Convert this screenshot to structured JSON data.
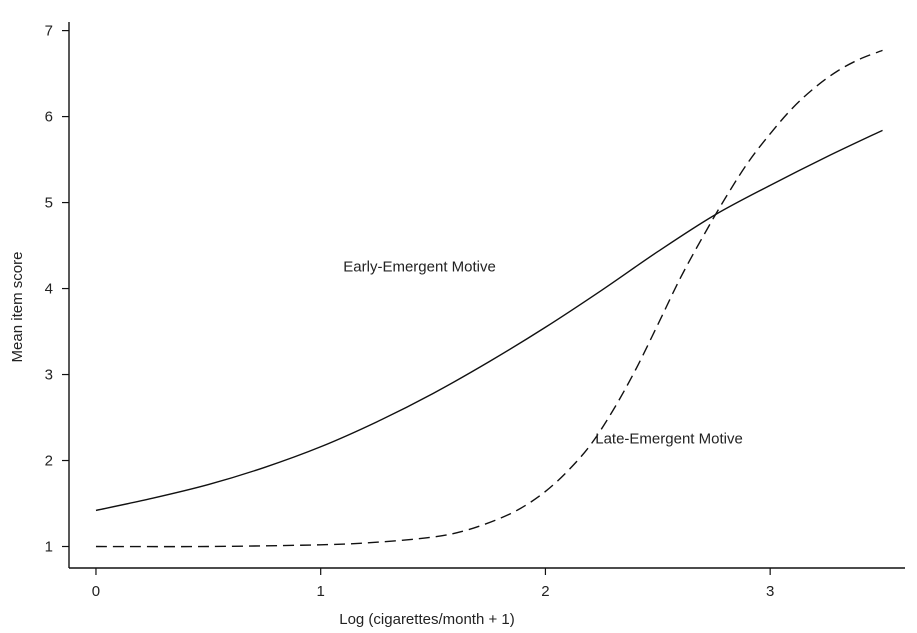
{
  "chart_data": {
    "type": "line",
    "title": "",
    "xlabel": "Log (cigarettes/month + 1)",
    "ylabel": "Mean item score",
    "xlim": [
      -0.12,
      3.6
    ],
    "ylim": [
      0.75,
      7.1
    ],
    "xticks": [
      0,
      1,
      2,
      3
    ],
    "yticks": [
      1,
      2,
      3,
      4,
      5,
      6,
      7
    ],
    "grid": false,
    "legend": "none",
    "series": [
      {
        "name": "Early-Emergent Motive",
        "style": "solid",
        "color": "#111111",
        "x": [
          0,
          0.25,
          0.5,
          0.75,
          1.0,
          1.25,
          1.5,
          1.75,
          2.0,
          2.25,
          2.5,
          2.75,
          3.0,
          3.25,
          3.5
        ],
        "y": [
          1.42,
          1.56,
          1.72,
          1.92,
          2.16,
          2.45,
          2.78,
          3.15,
          3.55,
          3.98,
          4.43,
          4.85,
          5.2,
          5.53,
          5.84
        ]
      },
      {
        "name": "Late-Emergent Motive",
        "style": "dashed",
        "color": "#111111",
        "x": [
          0,
          0.5,
          1.0,
          1.25,
          1.5,
          1.65,
          1.8,
          1.9,
          2.0,
          2.1,
          2.2,
          2.3,
          2.4,
          2.5,
          2.6,
          2.7,
          2.8,
          2.9,
          3.0,
          3.1,
          3.2,
          3.3,
          3.4,
          3.5
        ],
        "y": [
          1.0,
          1.0,
          1.02,
          1.05,
          1.11,
          1.19,
          1.33,
          1.46,
          1.64,
          1.88,
          2.18,
          2.58,
          3.05,
          3.58,
          4.12,
          4.6,
          5.05,
          5.46,
          5.8,
          6.1,
          6.34,
          6.53,
          6.67,
          6.77
        ]
      }
    ],
    "annotations": [
      {
        "text": "Early-Emergent Motive",
        "x": 1.44,
        "y": 4.2
      },
      {
        "text": "Late-Emergent Motive",
        "x": 2.55,
        "y": 2.2
      }
    ]
  }
}
